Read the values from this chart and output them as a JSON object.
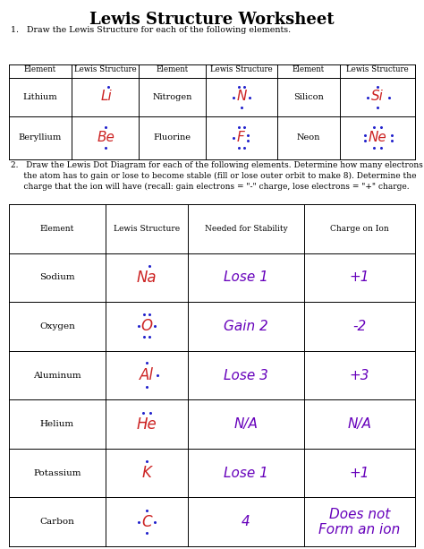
{
  "title": "Lewis Structure Worksheet",
  "bg_color": "#ffffff",
  "q1_instruction": "1.   Draw the Lewis Structure for each of the following elements.",
  "q2_instruction_line1": "2.   Draw the Lewis Dot Diagram for each of the following elements. Determine how many electrons",
  "q2_instruction_line2": "     the atom has to gain or lose to become stable (fill or lose outer orbit to make 8). Determine the",
  "q2_instruction_line3": "     charge that the ion will have (recall: gain electrons = \"-\" charge, lose electrons = \"+\" charge.",
  "table1_headers": [
    "Element",
    "Lewis Structure",
    "Element",
    "Lewis Structure",
    "Element",
    "Lewis Structure"
  ],
  "table2_headers": [
    "Element",
    "Lewis Structure",
    "Needed for Stability",
    "Charge on Ion"
  ],
  "table2_rows": [
    [
      "Sodium",
      "Na",
      "Lose 1",
      "+1"
    ],
    [
      "Oxygen",
      "O",
      "Gain 2",
      "-2"
    ],
    [
      "Aluminum",
      "Al",
      "Lose 3",
      "+3"
    ],
    [
      "Helium",
      "He",
      "N/A",
      "N/A"
    ],
    [
      "Potassium",
      "K",
      "Lose 1",
      "+1"
    ],
    [
      "Carbon",
      "C",
      "4",
      "Does not\nForm an ion"
    ]
  ],
  "red_color": "#cc2222",
  "blue_dot_color": "#2222cc",
  "purple_color": "#6600bb",
  "black_color": "#000000"
}
